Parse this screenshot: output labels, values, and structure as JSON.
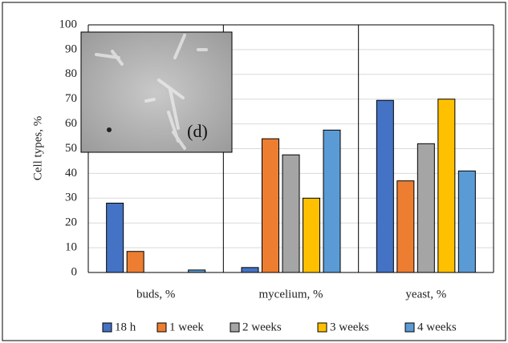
{
  "chart_data": {
    "type": "bar",
    "y_label": "Cell types, %",
    "annotation": "(d)",
    "categories": [
      "buds, %",
      "mycelium, %",
      "yeast, %"
    ],
    "series": [
      {
        "name": "18 h",
        "color": "#4472c4",
        "values": [
          28,
          2,
          69.5
        ]
      },
      {
        "name": "1 week",
        "color": "#ed7d31",
        "values": [
          8.5,
          54,
          37
        ]
      },
      {
        "name": "2 weeks",
        "color": "#a5a5a5",
        "values": [
          0,
          47.5,
          52
        ]
      },
      {
        "name": "3 weeks",
        "color": "#ffc000",
        "values": [
          0,
          30,
          70
        ]
      },
      {
        "name": "4 weeks",
        "color": "#5b9bd5",
        "values": [
          1,
          57.5,
          41
        ]
      }
    ],
    "ylim": [
      0,
      100
    ],
    "yticks": [
      0,
      10,
      20,
      30,
      40,
      50,
      60,
      70,
      80,
      90,
      100
    ],
    "grid": true,
    "legend": "bottom"
  }
}
